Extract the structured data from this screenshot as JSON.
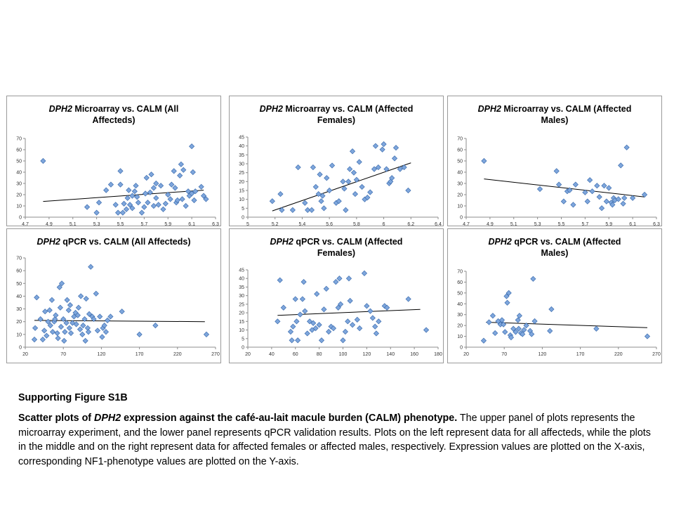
{
  "panels": [
    {
      "title_gene": "DPH2",
      "title_line1": "Microarray vs. CALM (All",
      "title_line2": "Affecteds)"
    },
    {
      "title_gene": "DPH2",
      "title_line1": "Microarray vs. CALM (Affected",
      "title_line2": "Females)"
    },
    {
      "title_gene": "DPH2",
      "title_line1": "Microarray vs. CALM (Affected",
      "title_line2": "Males)"
    },
    {
      "title_gene": "DPH2",
      "title_line1": "qPCR vs. CALM (All Affecteds)",
      "title_line2": ""
    },
    {
      "title_gene": "DPH2",
      "title_line1": "qPCR vs. CALM (Affected",
      "title_line2": "Females)"
    },
    {
      "title_gene": "DPH2",
      "title_line1": "qPCR vs. CALM (Affected",
      "title_line2": "Males)"
    }
  ],
  "caption": {
    "heading": "Supporting Figure S1B",
    "body_bold_1": "Scatter plots of ",
    "body_bold_italic": "DPH2",
    "body_bold_2": " expression against the café-au-lait macule burden (CALM) phenotype.",
    "body_rest": " The upper panel of plots represents the microarray experiment, and the lower panel represents qPCR validation results. Plots on the left represent data for all affecteds, while the plots in the middle and on the right represent data for affected females or affected males, respectively. Expression values are plotted on the X-axis, corresponding NF1-phenotype values are plotted on the Y-axis."
  },
  "colors": {
    "marker_fill": "#7ea6dc",
    "marker_stroke": "#3f6fb0",
    "trendline": "#000000",
    "axis": "#8c8c8c",
    "panel_border": "#9a9a9a"
  },
  "chart_data": [
    {
      "type": "scatter",
      "title": "DPH2 Microarray vs. CALM (All Affecteds)",
      "xlim": [
        4.7,
        6.3
      ],
      "ylim": [
        0,
        70
      ],
      "x_ticks": [
        "4.7",
        "4.9",
        "5.1",
        "5.3",
        "5.5",
        "5.7",
        "5.9",
        "6.1",
        "6.3"
      ],
      "y_ticks": [
        "0",
        "10",
        "20",
        "30",
        "40",
        "50",
        "60",
        "70"
      ],
      "trendline": [
        [
          4.85,
          14
        ],
        [
          6.2,
          24
        ]
      ],
      "points": [
        [
          4.85,
          50
        ],
        [
          5.22,
          9
        ],
        [
          5.3,
          4
        ],
        [
          5.32,
          13
        ],
        [
          5.38,
          24
        ],
        [
          5.42,
          29
        ],
        [
          5.46,
          11
        ],
        [
          5.48,
          4
        ],
        [
          5.5,
          41
        ],
        [
          5.5,
          29
        ],
        [
          5.52,
          4
        ],
        [
          5.53,
          12
        ],
        [
          5.55,
          7
        ],
        [
          5.56,
          17
        ],
        [
          5.57,
          24
        ],
        [
          5.58,
          11
        ],
        [
          5.6,
          19
        ],
        [
          5.6,
          8
        ],
        [
          5.62,
          23
        ],
        [
          5.63,
          28
        ],
        [
          5.64,
          18
        ],
        [
          5.65,
          13
        ],
        [
          5.68,
          4
        ],
        [
          5.7,
          9
        ],
        [
          5.71,
          21
        ],
        [
          5.72,
          35
        ],
        [
          5.73,
          13
        ],
        [
          5.75,
          22
        ],
        [
          5.76,
          38
        ],
        [
          5.78,
          26
        ],
        [
          5.78,
          10
        ],
        [
          5.8,
          17
        ],
        [
          5.8,
          30
        ],
        [
          5.82,
          11
        ],
        [
          5.84,
          28
        ],
        [
          5.86,
          7
        ],
        [
          5.88,
          12
        ],
        [
          5.9,
          20
        ],
        [
          5.92,
          16
        ],
        [
          5.93,
          29
        ],
        [
          5.95,
          41
        ],
        [
          5.96,
          26
        ],
        [
          5.97,
          13
        ],
        [
          5.98,
          15
        ],
        [
          6.0,
          37
        ],
        [
          6.01,
          47
        ],
        [
          6.02,
          16
        ],
        [
          6.03,
          42
        ],
        [
          6.05,
          10
        ],
        [
          6.07,
          23
        ],
        [
          6.08,
          19
        ],
        [
          6.1,
          63
        ],
        [
          6.1,
          21
        ],
        [
          6.11,
          40
        ],
        [
          6.12,
          15
        ],
        [
          6.13,
          23
        ],
        [
          6.18,
          27
        ],
        [
          6.2,
          19
        ],
        [
          6.22,
          16
        ]
      ]
    },
    {
      "type": "scatter",
      "title": "DPH2 Microarray vs. CALM (Affected Females)",
      "xlim": [
        5.0,
        6.4
      ],
      "ylim": [
        0,
        45
      ],
      "x_ticks": [
        "5",
        "5.2",
        "5.4",
        "5.6",
        "5.8",
        "6",
        "6.2",
        "6.4"
      ],
      "y_ticks": [
        "0",
        "5",
        "10",
        "15",
        "20",
        "25",
        "30",
        "35",
        "40",
        "45"
      ],
      "trendline": [
        [
          5.18,
          3.5
        ],
        [
          6.2,
          30.5
        ]
      ],
      "points": [
        [
          5.18,
          9
        ],
        [
          5.24,
          13
        ],
        [
          5.25,
          4
        ],
        [
          5.33,
          4
        ],
        [
          5.37,
          28
        ],
        [
          5.42,
          8
        ],
        [
          5.44,
          4
        ],
        [
          5.47,
          4
        ],
        [
          5.48,
          28
        ],
        [
          5.5,
          17
        ],
        [
          5.52,
          13
        ],
        [
          5.53,
          24
        ],
        [
          5.54,
          9
        ],
        [
          5.55,
          12
        ],
        [
          5.56,
          5
        ],
        [
          5.58,
          22
        ],
        [
          5.6,
          15
        ],
        [
          5.62,
          29
        ],
        [
          5.65,
          8
        ],
        [
          5.67,
          9
        ],
        [
          5.7,
          20
        ],
        [
          5.71,
          16
        ],
        [
          5.72,
          4
        ],
        [
          5.74,
          20
        ],
        [
          5.75,
          27
        ],
        [
          5.77,
          37
        ],
        [
          5.78,
          25
        ],
        [
          5.79,
          13
        ],
        [
          5.8,
          21
        ],
        [
          5.82,
          31
        ],
        [
          5.84,
          17
        ],
        [
          5.86,
          10
        ],
        [
          5.88,
          11
        ],
        [
          5.9,
          14
        ],
        [
          5.93,
          27
        ],
        [
          5.94,
          40
        ],
        [
          5.96,
          28
        ],
        [
          5.99,
          38
        ],
        [
          6.0,
          41
        ],
        [
          6.02,
          27
        ],
        [
          6.04,
          19
        ],
        [
          6.05,
          20
        ],
        [
          6.06,
          22
        ],
        [
          6.08,
          33
        ],
        [
          6.09,
          39
        ],
        [
          6.12,
          27
        ],
        [
          6.15,
          28
        ],
        [
          6.18,
          15
        ]
      ]
    },
    {
      "type": "scatter",
      "title": "DPH2 Microarray vs. CALM (Affected Males)",
      "xlim": [
        4.7,
        6.3
      ],
      "ylim": [
        0,
        70
      ],
      "x_ticks": [
        "4.7",
        "4.9",
        "5.1",
        "5.3",
        "5.5",
        "5.7",
        "5.9",
        "6.1",
        "6.3"
      ],
      "y_ticks": [
        "0",
        "10",
        "20",
        "30",
        "40",
        "50",
        "60",
        "70"
      ],
      "trendline": [
        [
          4.85,
          34
        ],
        [
          6.2,
          18
        ]
      ],
      "points": [
        [
          4.85,
          50
        ],
        [
          5.32,
          25
        ],
        [
          5.46,
          41
        ],
        [
          5.48,
          29
        ],
        [
          5.52,
          14
        ],
        [
          5.55,
          23
        ],
        [
          5.57,
          24
        ],
        [
          5.6,
          11
        ],
        [
          5.62,
          29
        ],
        [
          5.7,
          22
        ],
        [
          5.72,
          14
        ],
        [
          5.74,
          33
        ],
        [
          5.76,
          23
        ],
        [
          5.8,
          28
        ],
        [
          5.82,
          18
        ],
        [
          5.84,
          8
        ],
        [
          5.86,
          28
        ],
        [
          5.88,
          14
        ],
        [
          5.9,
          26
        ],
        [
          5.92,
          13
        ],
        [
          5.93,
          11
        ],
        [
          5.94,
          17
        ],
        [
          5.95,
          15
        ],
        [
          5.98,
          16
        ],
        [
          6.0,
          46
        ],
        [
          6.02,
          12
        ],
        [
          6.03,
          17
        ],
        [
          6.05,
          62
        ],
        [
          6.1,
          17
        ],
        [
          6.2,
          20
        ]
      ]
    },
    {
      "type": "scatter",
      "title": "DPH2 qPCR vs. CALM (All Affecteds)",
      "xlim": [
        20,
        270
      ],
      "ylim": [
        0,
        70
      ],
      "x_ticks": [
        "20",
        "70",
        "120",
        "170",
        "220",
        "270"
      ],
      "y_ticks": [
        "0",
        "10",
        "20",
        "30",
        "40",
        "50",
        "60",
        "70"
      ],
      "trendline": [
        [
          32,
          21
        ],
        [
          256,
          20
        ]
      ],
      "points": [
        [
          32,
          6
        ],
        [
          33,
          15
        ],
        [
          35,
          39
        ],
        [
          40,
          22
        ],
        [
          43,
          6
        ],
        [
          45,
          13
        ],
        [
          46,
          28
        ],
        [
          48,
          9
        ],
        [
          50,
          20
        ],
        [
          52,
          29
        ],
        [
          53,
          17
        ],
        [
          55,
          37
        ],
        [
          56,
          12
        ],
        [
          58,
          20
        ],
        [
          59,
          22
        ],
        [
          60,
          25
        ],
        [
          62,
          11
        ],
        [
          63,
          7
        ],
        [
          65,
          47
        ],
        [
          66,
          31
        ],
        [
          67,
          16
        ],
        [
          68,
          50
        ],
        [
          70,
          22
        ],
        [
          71,
          5
        ],
        [
          72,
          12
        ],
        [
          74,
          19
        ],
        [
          75,
          37
        ],
        [
          77,
          29
        ],
        [
          78,
          15
        ],
        [
          79,
          33
        ],
        [
          80,
          11
        ],
        [
          82,
          19
        ],
        [
          84,
          24
        ],
        [
          86,
          27
        ],
        [
          87,
          18
        ],
        [
          89,
          25
        ],
        [
          90,
          31
        ],
        [
          92,
          14
        ],
        [
          93,
          40
        ],
        [
          95,
          10
        ],
        [
          96,
          17
        ],
        [
          98,
          22
        ],
        [
          99,
          5
        ],
        [
          100,
          38
        ],
        [
          102,
          15
        ],
        [
          103,
          12
        ],
        [
          104,
          26
        ],
        [
          106,
          63
        ],
        [
          108,
          24
        ],
        [
          110,
          22
        ],
        [
          113,
          42
        ],
        [
          115,
          13
        ],
        [
          118,
          24
        ],
        [
          121,
          8
        ],
        [
          122,
          15
        ],
        [
          124,
          17
        ],
        [
          126,
          12
        ],
        [
          128,
          21
        ],
        [
          132,
          24
        ],
        [
          147,
          28
        ],
        [
          170,
          10
        ],
        [
          191,
          17
        ],
        [
          258,
          10
        ]
      ]
    },
    {
      "type": "scatter",
      "title": "DPH2 qPCR vs. CALM (Affected Females)",
      "xlim": [
        20,
        180
      ],
      "ylim": [
        0,
        45
      ],
      "x_ticks": [
        "20",
        "40",
        "60",
        "80",
        "100",
        "120",
        "140",
        "160",
        "180"
      ],
      "y_ticks": [
        "0",
        "5",
        "10",
        "15",
        "20",
        "25",
        "30",
        "35",
        "40",
        "45"
      ],
      "trendline": [
        [
          45,
          18.5
        ],
        [
          165,
          22
        ]
      ],
      "points": [
        [
          45,
          15
        ],
        [
          47,
          39
        ],
        [
          50,
          23
        ],
        [
          56,
          9
        ],
        [
          57,
          4
        ],
        [
          58,
          12
        ],
        [
          60,
          28
        ],
        [
          61,
          15
        ],
        [
          62,
          4
        ],
        [
          64,
          19
        ],
        [
          66,
          28
        ],
        [
          67,
          38
        ],
        [
          68,
          21
        ],
        [
          70,
          8
        ],
        [
          72,
          15
        ],
        [
          74,
          10
        ],
        [
          75,
          14
        ],
        [
          77,
          11
        ],
        [
          78,
          31
        ],
        [
          80,
          13
        ],
        [
          82,
          4
        ],
        [
          84,
          22
        ],
        [
          86,
          34
        ],
        [
          88,
          9
        ],
        [
          90,
          12
        ],
        [
          92,
          11
        ],
        [
          94,
          38
        ],
        [
          96,
          23
        ],
        [
          97,
          40
        ],
        [
          98,
          25
        ],
        [
          100,
          4
        ],
        [
          102,
          9
        ],
        [
          104,
          15
        ],
        [
          105,
          40
        ],
        [
          106,
          27
        ],
        [
          108,
          13
        ],
        [
          112,
          16
        ],
        [
          114,
          11
        ],
        [
          118,
          43
        ],
        [
          120,
          24
        ],
        [
          123,
          21
        ],
        [
          125,
          17
        ],
        [
          127,
          12
        ],
        [
          128,
          8
        ],
        [
          130,
          15
        ],
        [
          135,
          24
        ],
        [
          137,
          23
        ],
        [
          155,
          28
        ],
        [
          170,
          10
        ]
      ]
    },
    {
      "type": "scatter",
      "title": "DPH2 qPCR vs. CALM (Affected Males)",
      "xlim": [
        20,
        270
      ],
      "ylim": [
        0,
        70
      ],
      "x_ticks": [
        "20",
        "70",
        "120",
        "170",
        "220",
        "270"
      ],
      "y_ticks": [
        "0",
        "10",
        "20",
        "30",
        "40",
        "50",
        "60",
        "70"
      ],
      "trendline": [
        [
          46,
          23
        ],
        [
          258,
          18
        ]
      ],
      "points": [
        [
          43,
          6
        ],
        [
          50,
          23
        ],
        [
          55,
          29
        ],
        [
          58,
          13
        ],
        [
          62,
          24
        ],
        [
          65,
          21
        ],
        [
          67,
          25
        ],
        [
          69,
          21
        ],
        [
          71,
          14
        ],
        [
          73,
          47
        ],
        [
          74,
          41
        ],
        [
          76,
          50
        ],
        [
          78,
          11
        ],
        [
          79,
          9
        ],
        [
          82,
          17
        ],
        [
          85,
          14
        ],
        [
          88,
          25
        ],
        [
          89,
          17
        ],
        [
          90,
          29
        ],
        [
          92,
          13
        ],
        [
          94,
          12
        ],
        [
          96,
          16
        ],
        [
          99,
          20
        ],
        [
          104,
          15
        ],
        [
          106,
          12
        ],
        [
          108,
          63
        ],
        [
          110,
          24
        ],
        [
          130,
          15
        ],
        [
          132,
          35
        ],
        [
          191,
          17
        ],
        [
          258,
          10
        ]
      ]
    }
  ]
}
